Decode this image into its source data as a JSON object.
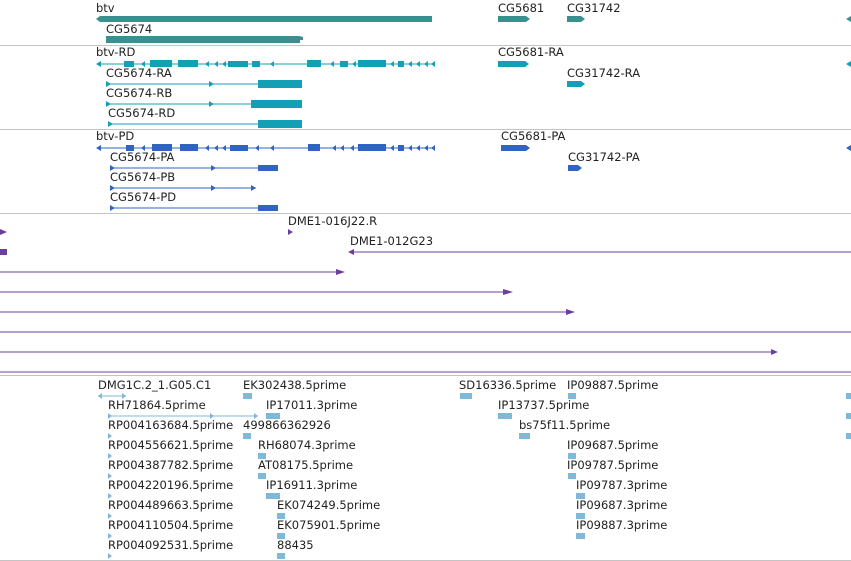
{
  "colors": {
    "gene": "#3b8f8e",
    "transcript": "#13a0b6",
    "protein": "#2f63c4",
    "clone": "#6b3fa0",
    "est": "#80b8d8",
    "divider": "#c4c4c4"
  },
  "tracks": {
    "genes": {
      "labels": [
        "btv",
        "CG5674",
        "CG5681",
        "CG31742"
      ]
    },
    "transcripts": {
      "labels": [
        "btv-RD",
        "CG5674-RA",
        "CG5674-RB",
        "CG5674-RD",
        "CG5681-RA",
        "CG31742-RA"
      ]
    },
    "proteins": {
      "labels": [
        "btv-PD",
        "CG5674-PA",
        "CG5674-PB",
        "CG5674-PD",
        "CG5681-PA",
        "CG31742-PA"
      ]
    },
    "clones": {
      "labels": [
        "DME1-016J22.R",
        "DME1-012G23"
      ]
    },
    "ests": {
      "labels": [
        "DMG1C.2_1.G05.C1",
        "EK302438.5prime",
        "SD16336.5prime",
        "IP09887.5prime",
        "RH71864.5prime",
        "IP17011.3prime",
        "IP13737.5prime",
        "RP004163684.5prime",
        "499866362926",
        "bs75f11.5prime",
        "RP004556621.5prime",
        "RH68074.3prime",
        "IP09687.5prime",
        "RP004387782.5prime",
        "AT08175.5prime",
        "IP09787.5prime",
        "RP004220196.5prime",
        "IP16911.3prime",
        "IP09787.3prime",
        "RP004489663.5prime",
        "EK074249.5prime",
        "IP09687.3prime",
        "RP004110504.5prime",
        "EK075901.5prime",
        "IP09887.3prime",
        "RP004092531.5prime",
        "88435"
      ]
    }
  }
}
